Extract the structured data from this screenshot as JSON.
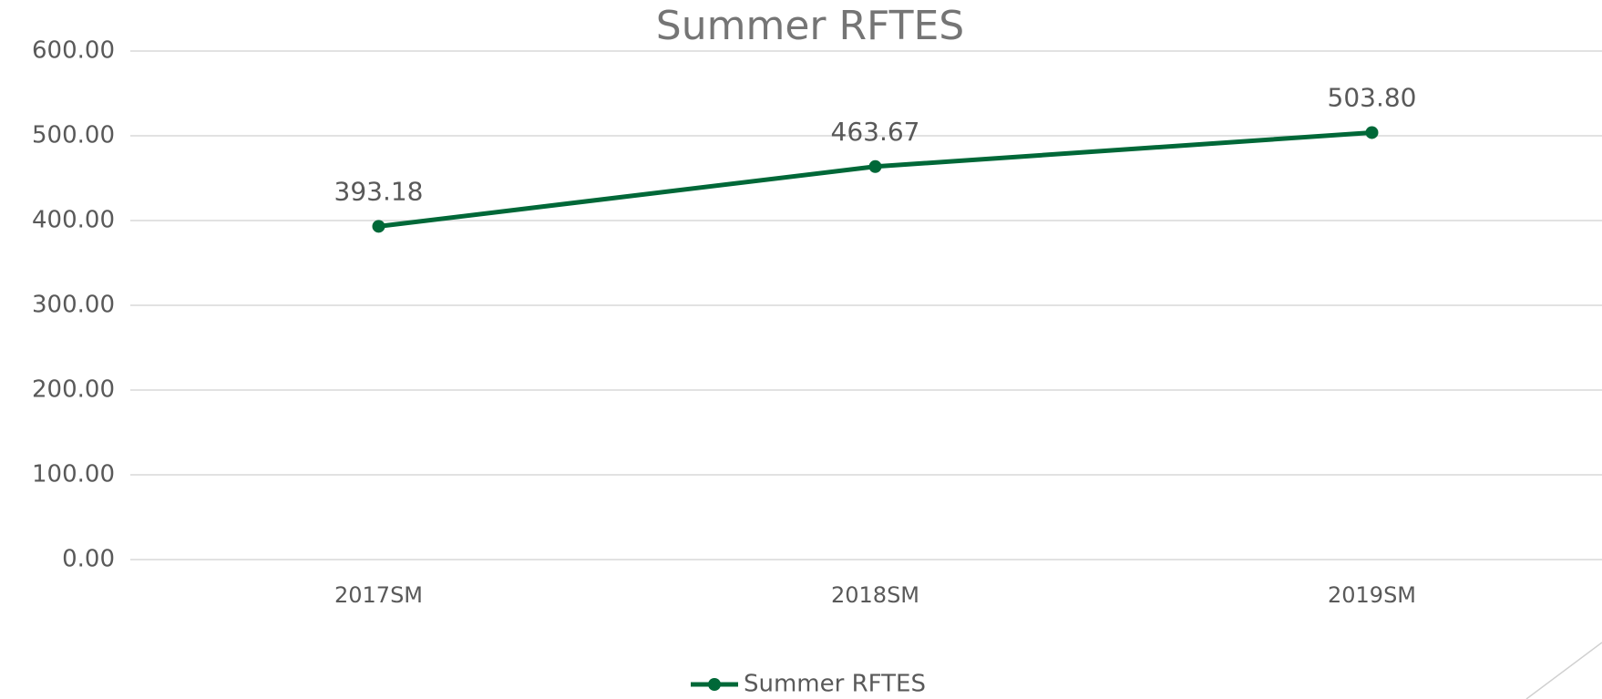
{
  "chart_data": {
    "type": "line",
    "title": "Summer RFTES",
    "categories": [
      "2017SM",
      "2018SM",
      "2019SM"
    ],
    "series": [
      {
        "name": "Summer RFTES",
        "color": "#006838",
        "values": [
          393.18,
          463.67,
          503.8
        ],
        "value_labels": [
          "393.18",
          "463.67",
          "503.80"
        ]
      }
    ],
    "ylim": [
      0,
      600
    ],
    "yticks": [
      {
        "value": 0,
        "label": "0.00"
      },
      {
        "value": 100,
        "label": "100.00"
      },
      {
        "value": 200,
        "label": "200.00"
      },
      {
        "value": 300,
        "label": "300.00"
      },
      {
        "value": 400,
        "label": "400.00"
      },
      {
        "value": 500,
        "label": "500.00"
      },
      {
        "value": 600,
        "label": "600.00"
      }
    ],
    "grid": true,
    "legend": "bottom"
  }
}
